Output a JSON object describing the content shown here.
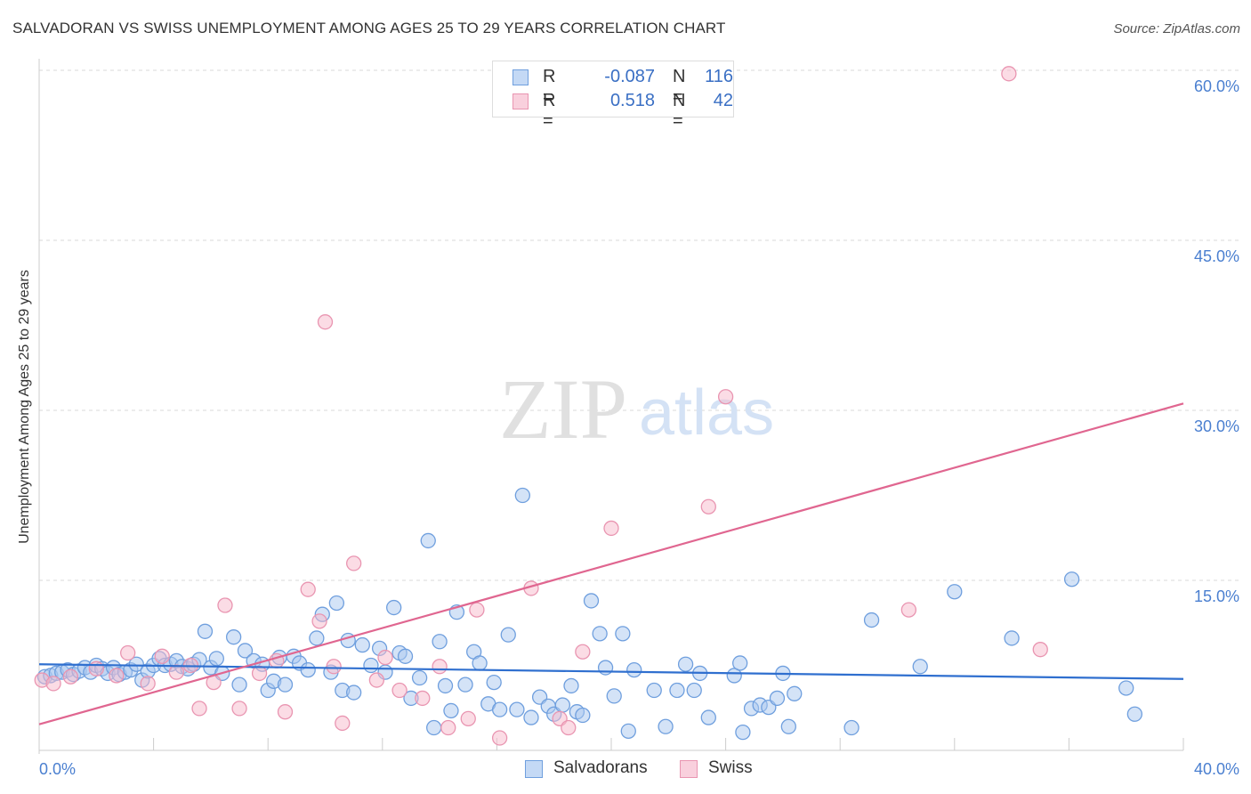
{
  "header": {
    "title": "SALVADORAN VS SWISS UNEMPLOYMENT AMONG AGES 25 TO 29 YEARS CORRELATION CHART",
    "source": "Source: ZipAtlas.com"
  },
  "watermark": {
    "zip": "ZIP",
    "atlas": "atlas"
  },
  "legend_top": [
    {
      "r_label": "R =",
      "r_value": "-0.087",
      "n_label": "N =",
      "n_value": "116"
    },
    {
      "r_label": "R =",
      "r_value": "0.518",
      "n_label": "N =",
      "n_value": "42"
    }
  ],
  "colors": {
    "blue_fill": "#a9c8f0",
    "blue_stroke": "#6f9fde",
    "blue_line": "#2f6fcf",
    "pink_fill": "#f7b9cc",
    "pink_stroke": "#e995b1",
    "pink_line": "#e06690",
    "axis_text": "#4a7fd0",
    "grid": "#d8d8d8"
  },
  "chart_data": {
    "type": "scatter",
    "title": "SALVADORAN VS SWISS UNEMPLOYMENT AMONG AGES 25 TO 29 YEARS CORRELATION CHART",
    "xlabel": "",
    "ylabel": "Unemployment Among Ages 25 to 29 years",
    "xlim": [
      0,
      40
    ],
    "ylim": [
      0,
      60
    ],
    "x_tick_labels": [
      "0.0%",
      "40.0%"
    ],
    "y_ticks": [
      15,
      30,
      45,
      60
    ],
    "y_tick_labels": [
      "15.0%",
      "30.0%",
      "45.0%",
      "60.0%"
    ],
    "grid": true,
    "legend_position": "bottom-center",
    "series": [
      {
        "name": "Salvadorans",
        "r": -0.087,
        "n": 116,
        "trend": {
          "x": [
            0,
            40
          ],
          "y": [
            7.6,
            6.3
          ]
        },
        "points": [
          [
            0.2,
            6.5
          ],
          [
            0.4,
            6.6
          ],
          [
            0.6,
            6.8
          ],
          [
            0.8,
            6.9
          ],
          [
            1.0,
            7.1
          ],
          [
            1.2,
            6.7
          ],
          [
            1.4,
            7.0
          ],
          [
            1.6,
            7.3
          ],
          [
            1.8,
            6.9
          ],
          [
            2.0,
            7.5
          ],
          [
            2.2,
            7.2
          ],
          [
            2.4,
            6.8
          ],
          [
            2.6,
            7.3
          ],
          [
            2.8,
            6.7
          ],
          [
            3.0,
            6.9
          ],
          [
            3.2,
            7.1
          ],
          [
            3.4,
            7.6
          ],
          [
            3.6,
            6.2
          ],
          [
            3.8,
            7.0
          ],
          [
            4.0,
            7.5
          ],
          [
            4.2,
            8.1
          ],
          [
            4.4,
            7.5
          ],
          [
            4.6,
            7.6
          ],
          [
            4.8,
            7.9
          ],
          [
            5.0,
            7.4
          ],
          [
            5.2,
            7.2
          ],
          [
            5.4,
            7.6
          ],
          [
            5.6,
            8.0
          ],
          [
            5.8,
            10.5
          ],
          [
            6.0,
            7.3
          ],
          [
            6.2,
            8.1
          ],
          [
            6.4,
            6.8
          ],
          [
            6.8,
            10.0
          ],
          [
            7.0,
            5.8
          ],
          [
            7.2,
            8.8
          ],
          [
            7.5,
            7.9
          ],
          [
            7.8,
            7.6
          ],
          [
            8.0,
            5.3
          ],
          [
            8.2,
            6.1
          ],
          [
            8.4,
            8.2
          ],
          [
            8.6,
            5.8
          ],
          [
            8.9,
            8.3
          ],
          [
            9.1,
            7.7
          ],
          [
            9.4,
            7.1
          ],
          [
            9.7,
            9.9
          ],
          [
            9.9,
            12.0
          ],
          [
            10.2,
            6.9
          ],
          [
            10.4,
            13.0
          ],
          [
            10.6,
            5.3
          ],
          [
            10.8,
            9.7
          ],
          [
            11.0,
            5.1
          ],
          [
            11.3,
            9.3
          ],
          [
            11.6,
            7.5
          ],
          [
            11.9,
            9.0
          ],
          [
            12.1,
            6.9
          ],
          [
            12.4,
            12.6
          ],
          [
            12.6,
            8.6
          ],
          [
            12.8,
            8.3
          ],
          [
            13.0,
            4.6
          ],
          [
            13.3,
            6.4
          ],
          [
            13.6,
            18.5
          ],
          [
            13.8,
            2.0
          ],
          [
            14.0,
            9.6
          ],
          [
            14.2,
            5.7
          ],
          [
            14.4,
            3.5
          ],
          [
            14.6,
            12.2
          ],
          [
            14.9,
            5.8
          ],
          [
            15.2,
            8.7
          ],
          [
            15.4,
            7.7
          ],
          [
            15.7,
            4.1
          ],
          [
            15.9,
            6.0
          ],
          [
            16.1,
            3.6
          ],
          [
            16.4,
            10.2
          ],
          [
            16.7,
            3.6
          ],
          [
            16.9,
            22.5
          ],
          [
            17.2,
            2.9
          ],
          [
            17.5,
            4.7
          ],
          [
            17.8,
            3.9
          ],
          [
            18.0,
            3.2
          ],
          [
            18.3,
            4.0
          ],
          [
            18.6,
            5.7
          ],
          [
            18.8,
            3.4
          ],
          [
            19.0,
            3.1
          ],
          [
            19.3,
            13.2
          ],
          [
            19.6,
            10.3
          ],
          [
            19.8,
            7.3
          ],
          [
            20.1,
            4.8
          ],
          [
            20.4,
            10.3
          ],
          [
            20.6,
            1.7
          ],
          [
            20.8,
            7.1
          ],
          [
            21.5,
            5.3
          ],
          [
            21.9,
            2.1
          ],
          [
            22.3,
            5.3
          ],
          [
            22.6,
            7.6
          ],
          [
            22.9,
            5.3
          ],
          [
            23.1,
            6.8
          ],
          [
            23.4,
            2.9
          ],
          [
            24.3,
            6.6
          ],
          [
            24.5,
            7.7
          ],
          [
            24.6,
            1.6
          ],
          [
            24.9,
            3.7
          ],
          [
            25.2,
            4.0
          ],
          [
            25.5,
            3.8
          ],
          [
            25.8,
            4.6
          ],
          [
            26.0,
            6.8
          ],
          [
            26.2,
            2.1
          ],
          [
            26.4,
            5.0
          ],
          [
            28.4,
            2.0
          ],
          [
            29.1,
            11.5
          ],
          [
            30.8,
            7.4
          ],
          [
            32.0,
            14.0
          ],
          [
            34.0,
            9.9
          ],
          [
            36.1,
            15.1
          ],
          [
            38.0,
            5.5
          ],
          [
            38.3,
            3.2
          ]
        ]
      },
      {
        "name": "Swiss",
        "r": 0.518,
        "n": 42,
        "trend": {
          "x": [
            0,
            40
          ],
          "y": [
            2.3,
            30.6
          ]
        },
        "points": [
          [
            0.1,
            6.2
          ],
          [
            0.5,
            5.9
          ],
          [
            1.1,
            6.5
          ],
          [
            2.0,
            7.2
          ],
          [
            2.7,
            6.6
          ],
          [
            3.1,
            8.6
          ],
          [
            3.8,
            5.9
          ],
          [
            4.3,
            8.3
          ],
          [
            4.8,
            6.9
          ],
          [
            5.3,
            7.5
          ],
          [
            5.6,
            3.7
          ],
          [
            6.1,
            6.0
          ],
          [
            6.5,
            12.8
          ],
          [
            7.0,
            3.7
          ],
          [
            7.7,
            6.8
          ],
          [
            8.3,
            7.9
          ],
          [
            8.6,
            3.4
          ],
          [
            9.4,
            14.2
          ],
          [
            9.8,
            11.4
          ],
          [
            10.0,
            37.8
          ],
          [
            10.3,
            7.4
          ],
          [
            10.6,
            2.4
          ],
          [
            11.0,
            16.5
          ],
          [
            11.8,
            6.2
          ],
          [
            12.1,
            8.2
          ],
          [
            12.6,
            5.3
          ],
          [
            13.4,
            4.6
          ],
          [
            14.0,
            7.4
          ],
          [
            14.3,
            2.0
          ],
          [
            15.0,
            2.8
          ],
          [
            15.3,
            12.4
          ],
          [
            16.1,
            1.1
          ],
          [
            17.2,
            14.3
          ],
          [
            18.2,
            2.8
          ],
          [
            18.5,
            2.0
          ],
          [
            19.0,
            8.7
          ],
          [
            20.0,
            19.6
          ],
          [
            23.4,
            21.5
          ],
          [
            24.0,
            31.2
          ],
          [
            30.4,
            12.4
          ],
          [
            33.9,
            59.7
          ],
          [
            35.0,
            8.9
          ]
        ]
      }
    ]
  },
  "legend_bottom": [
    {
      "label": "Salvadorans"
    },
    {
      "label": "Swiss"
    }
  ]
}
